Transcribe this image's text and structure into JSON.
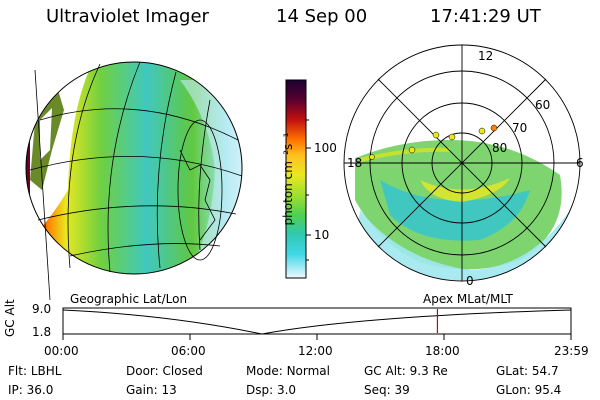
{
  "header": {
    "title": "Ultraviolet Imager",
    "date": "14 Sep 00",
    "time": "17:41:29 UT"
  },
  "colorbar": {
    "label": "photon cm⁻²s⁻¹",
    "ticks": [
      "100",
      "10"
    ],
    "colors": [
      "#1a0033",
      "#5a0030",
      "#a00010",
      "#e03010",
      "#ff8000",
      "#ffc020",
      "#e8e820",
      "#b8e030",
      "#70d040",
      "#30c8a0",
      "#40d0e0",
      "#a0e8f0",
      "#f0f8ff"
    ]
  },
  "left_panel": {
    "caption": "Geographic Lat/Lon"
  },
  "right_panel": {
    "caption": "Apex MLat/MLT",
    "mlt_labels": {
      "top": "12",
      "left": "18",
      "right": "6",
      "bottom": "0"
    },
    "lat_labels": [
      "60",
      "70",
      "80"
    ]
  },
  "timeline": {
    "ylabel": "GC Alt",
    "yticks": [
      "9.0",
      "1.8"
    ],
    "xticks": [
      "00:00",
      "06:00",
      "12:00",
      "18:00",
      "23:59"
    ],
    "marker_hour": 17.69
  },
  "status": {
    "row1": [
      {
        "label": "Flt:",
        "value": "LBHL"
      },
      {
        "label": "Door:",
        "value": "Closed"
      },
      {
        "label": "Mode:",
        "value": "Normal"
      },
      {
        "label": "GC Alt:",
        "value": "9.3 Re"
      },
      {
        "label": "GLat:",
        "value": "54.7"
      }
    ],
    "row2": [
      {
        "label": "IP:",
        "value": "36.0"
      },
      {
        "label": "Gain:",
        "value": "13"
      },
      {
        "label": "Dsp:",
        "value": "3.0"
      },
      {
        "label": "Seq:",
        "value": "39"
      },
      {
        "label": "GLon:",
        "value": "95.4"
      }
    ]
  }
}
